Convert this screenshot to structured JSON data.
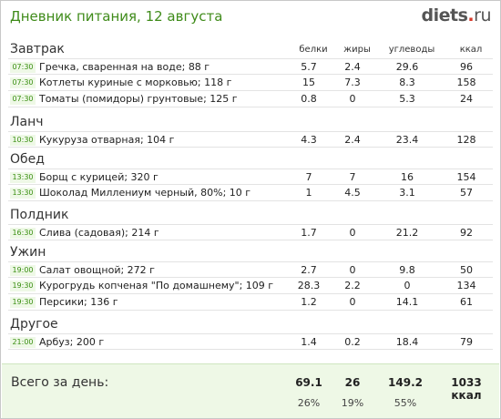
{
  "header": {
    "title": "Дневник питания, 12 августа",
    "logo_main": "diets",
    "logo_dot": ".",
    "logo_tld": "ru"
  },
  "columns": {
    "protein": "белки",
    "fat": "жиры",
    "carbs": "углеводы",
    "kcal": "ккал"
  },
  "meals": [
    {
      "name": "Завтрак",
      "items": [
        {
          "time": "07:30",
          "food": "Гречка, сваренная на воде; 88 г",
          "protein": "5.7",
          "fat": "2.4",
          "carbs": "29.6",
          "kcal": "96"
        },
        {
          "time": "07:30",
          "food": "Котлеты куриные с морковью; 118 г",
          "protein": "15",
          "fat": "7.3",
          "carbs": "8.3",
          "kcal": "158"
        },
        {
          "time": "07:30",
          "food": "Томаты (помидоры) грунтовые; 125 г",
          "protein": "0.8",
          "fat": "0",
          "carbs": "5.3",
          "kcal": "24"
        }
      ]
    },
    {
      "name": "Ланч",
      "items": [
        {
          "time": "10:30",
          "food": "Кукуруза отварная; 104 г",
          "protein": "4.3",
          "fat": "2.4",
          "carbs": "23.4",
          "kcal": "128"
        }
      ]
    },
    {
      "name": "Обед",
      "items": [
        {
          "time": "13:30",
          "food": "Борщ с курицей; 320 г",
          "protein": "7",
          "fat": "7",
          "carbs": "16",
          "kcal": "154"
        },
        {
          "time": "13:30",
          "food": "Шоколад Миллениум черный, 80%; 10 г",
          "protein": "1",
          "fat": "4.5",
          "carbs": "3.1",
          "kcal": "57"
        }
      ]
    },
    {
      "name": "Полдник",
      "items": [
        {
          "time": "16:30",
          "food": "Слива (садовая); 214 г",
          "protein": "1.7",
          "fat": "0",
          "carbs": "21.2",
          "kcal": "92"
        }
      ]
    },
    {
      "name": "Ужин",
      "items": [
        {
          "time": "19:00",
          "food": "Салат овощной; 272 г",
          "protein": "2.7",
          "fat": "0",
          "carbs": "9.8",
          "kcal": "50"
        },
        {
          "time": "19:30",
          "food": "Курогрудь копченая \"По домашнему\"; 109 г",
          "protein": "28.3",
          "fat": "2.2",
          "carbs": "0",
          "kcal": "134"
        },
        {
          "time": "19:30",
          "food": "Персики; 136 г",
          "protein": "1.2",
          "fat": "0",
          "carbs": "14.1",
          "kcal": "61"
        }
      ]
    },
    {
      "name": "Другое",
      "items": [
        {
          "time": "21:00",
          "food": "Арбуз; 200 г",
          "protein": "1.4",
          "fat": "0.2",
          "carbs": "18.4",
          "kcal": "79"
        }
      ]
    }
  ],
  "totals": {
    "label": "Всего за день:",
    "protein": "69.1",
    "fat": "26",
    "carbs": "149.2",
    "kcal": "1033 ккал",
    "protein_pct": "26%",
    "fat_pct": "19%",
    "carbs_pct": "55%"
  },
  "colors": {
    "title_green": "#3f8b1a",
    "time_badge_bg": "#eef8e6",
    "totals_bg": "#eef8e6",
    "logo_dot": "#d83a2a"
  }
}
